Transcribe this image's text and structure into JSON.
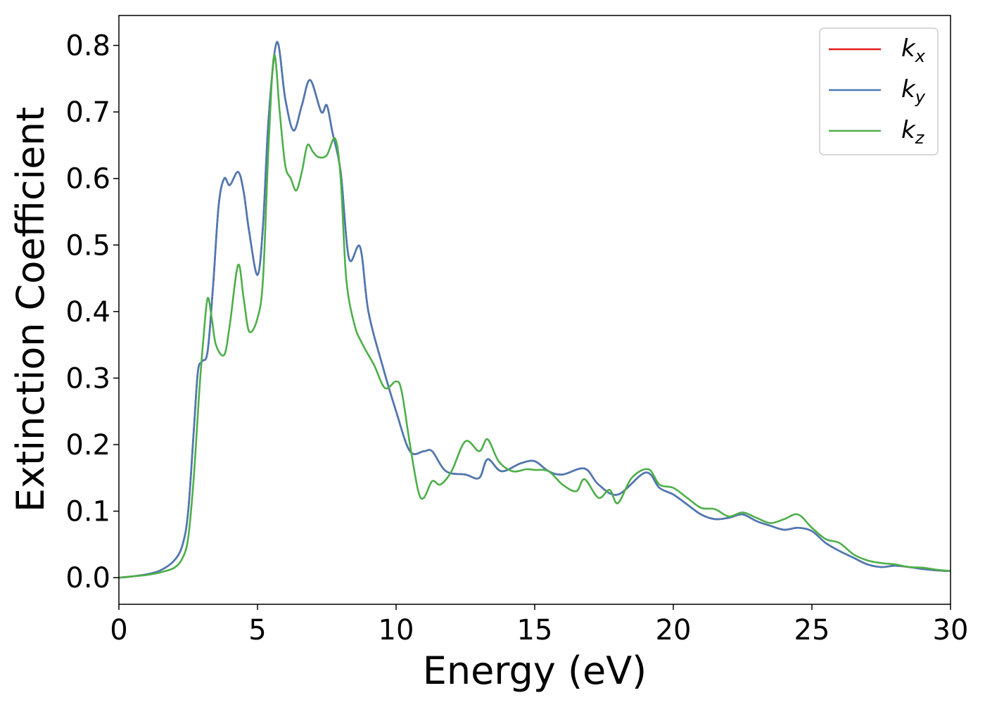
{
  "chart_data": {
    "type": "line",
    "title": "",
    "xlabel": "Energy (eV)",
    "ylabel": "Extinction Coefficient",
    "xlim": [
      0,
      30
    ],
    "ylim": [
      -0.04,
      0.845
    ],
    "x_ticks": [
      0,
      5,
      10,
      15,
      20,
      25,
      30
    ],
    "x_tick_labels": [
      "0",
      "5",
      "10",
      "15",
      "20",
      "25",
      "30"
    ],
    "y_ticks": [
      0.0,
      0.1,
      0.2,
      0.3,
      0.4,
      0.5,
      0.6,
      0.7,
      0.8
    ],
    "y_tick_labels": [
      "0.0",
      "0.1",
      "0.2",
      "0.3",
      "0.4",
      "0.5",
      "0.6",
      "0.7",
      "0.8"
    ],
    "grid": false,
    "legend_position": "top-right",
    "series": [
      {
        "name": "k",
        "subscript": "x",
        "color": "#e41a1c",
        "points": [
          [
            0,
            0.0
          ],
          [
            0.5,
            0.002
          ],
          [
            1.0,
            0.005
          ],
          [
            1.5,
            0.011
          ],
          [
            2.0,
            0.026
          ],
          [
            2.3,
            0.05
          ],
          [
            2.5,
            0.1
          ],
          [
            2.7,
            0.22
          ],
          [
            2.85,
            0.31
          ],
          [
            3.0,
            0.325
          ],
          [
            3.2,
            0.34
          ],
          [
            3.4,
            0.44
          ],
          [
            3.6,
            0.56
          ],
          [
            3.8,
            0.6
          ],
          [
            4.0,
            0.59
          ],
          [
            4.3,
            0.61
          ],
          [
            4.5,
            0.58
          ],
          [
            4.7,
            0.52
          ],
          [
            5.0,
            0.455
          ],
          [
            5.2,
            0.53
          ],
          [
            5.4,
            0.69
          ],
          [
            5.7,
            0.805
          ],
          [
            6.0,
            0.72
          ],
          [
            6.3,
            0.672
          ],
          [
            6.6,
            0.71
          ],
          [
            6.9,
            0.748
          ],
          [
            7.3,
            0.7
          ],
          [
            7.5,
            0.71
          ],
          [
            7.7,
            0.67
          ],
          [
            8.0,
            0.61
          ],
          [
            8.3,
            0.48
          ],
          [
            8.7,
            0.497
          ],
          [
            9.0,
            0.4
          ],
          [
            9.5,
            0.32
          ],
          [
            10.0,
            0.25
          ],
          [
            10.5,
            0.19
          ],
          [
            11.0,
            0.19
          ],
          [
            11.3,
            0.19
          ],
          [
            11.8,
            0.16
          ],
          [
            12.5,
            0.155
          ],
          [
            13.0,
            0.15
          ],
          [
            13.3,
            0.178
          ],
          [
            13.8,
            0.16
          ],
          [
            14.5,
            0.172
          ],
          [
            15.0,
            0.175
          ],
          [
            15.5,
            0.16
          ],
          [
            16.0,
            0.155
          ],
          [
            16.8,
            0.164
          ],
          [
            17.3,
            0.14
          ],
          [
            18.0,
            0.125
          ],
          [
            19.0,
            0.158
          ],
          [
            19.5,
            0.135
          ],
          [
            20.0,
            0.125
          ],
          [
            20.5,
            0.11
          ],
          [
            21.0,
            0.095
          ],
          [
            21.5,
            0.088
          ],
          [
            22.0,
            0.09
          ],
          [
            22.5,
            0.095
          ],
          [
            23.0,
            0.085
          ],
          [
            23.5,
            0.078
          ],
          [
            24.0,
            0.072
          ],
          [
            24.5,
            0.075
          ],
          [
            25.0,
            0.07
          ],
          [
            25.5,
            0.052
          ],
          [
            26.0,
            0.04
          ],
          [
            26.5,
            0.03
          ],
          [
            27.0,
            0.02
          ],
          [
            27.5,
            0.016
          ],
          [
            28.0,
            0.018
          ],
          [
            28.5,
            0.016
          ],
          [
            29.0,
            0.013
          ],
          [
            29.5,
            0.011
          ],
          [
            30.0,
            0.01
          ]
        ]
      },
      {
        "name": "k",
        "subscript": "y",
        "color": "#4a7ab5",
        "points": [
          [
            0,
            0.0
          ],
          [
            0.5,
            0.002
          ],
          [
            1.0,
            0.005
          ],
          [
            1.5,
            0.011
          ],
          [
            2.0,
            0.026
          ],
          [
            2.3,
            0.05
          ],
          [
            2.5,
            0.1
          ],
          [
            2.7,
            0.22
          ],
          [
            2.85,
            0.31
          ],
          [
            3.0,
            0.325
          ],
          [
            3.2,
            0.34
          ],
          [
            3.4,
            0.44
          ],
          [
            3.6,
            0.56
          ],
          [
            3.8,
            0.6
          ],
          [
            4.0,
            0.59
          ],
          [
            4.3,
            0.61
          ],
          [
            4.5,
            0.58
          ],
          [
            4.7,
            0.52
          ],
          [
            5.0,
            0.455
          ],
          [
            5.2,
            0.53
          ],
          [
            5.4,
            0.69
          ],
          [
            5.7,
            0.805
          ],
          [
            6.0,
            0.72
          ],
          [
            6.3,
            0.672
          ],
          [
            6.6,
            0.71
          ],
          [
            6.9,
            0.748
          ],
          [
            7.3,
            0.7
          ],
          [
            7.5,
            0.71
          ],
          [
            7.7,
            0.67
          ],
          [
            8.0,
            0.61
          ],
          [
            8.3,
            0.48
          ],
          [
            8.7,
            0.497
          ],
          [
            9.0,
            0.4
          ],
          [
            9.5,
            0.32
          ],
          [
            10.0,
            0.25
          ],
          [
            10.5,
            0.19
          ],
          [
            11.0,
            0.19
          ],
          [
            11.3,
            0.19
          ],
          [
            11.8,
            0.16
          ],
          [
            12.5,
            0.155
          ],
          [
            13.0,
            0.15
          ],
          [
            13.3,
            0.178
          ],
          [
            13.8,
            0.16
          ],
          [
            14.5,
            0.172
          ],
          [
            15.0,
            0.175
          ],
          [
            15.5,
            0.16
          ],
          [
            16.0,
            0.155
          ],
          [
            16.8,
            0.164
          ],
          [
            17.3,
            0.14
          ],
          [
            18.0,
            0.125
          ],
          [
            19.0,
            0.158
          ],
          [
            19.5,
            0.135
          ],
          [
            20.0,
            0.125
          ],
          [
            20.5,
            0.11
          ],
          [
            21.0,
            0.095
          ],
          [
            21.5,
            0.088
          ],
          [
            22.0,
            0.09
          ],
          [
            22.5,
            0.095
          ],
          [
            23.0,
            0.085
          ],
          [
            23.5,
            0.078
          ],
          [
            24.0,
            0.072
          ],
          [
            24.5,
            0.075
          ],
          [
            25.0,
            0.07
          ],
          [
            25.5,
            0.052
          ],
          [
            26.0,
            0.04
          ],
          [
            26.5,
            0.03
          ],
          [
            27.0,
            0.02
          ],
          [
            27.5,
            0.016
          ],
          [
            28.0,
            0.018
          ],
          [
            28.5,
            0.016
          ],
          [
            29.0,
            0.013
          ],
          [
            29.5,
            0.011
          ],
          [
            30.0,
            0.01
          ]
        ]
      },
      {
        "name": "k",
        "subscript": "z",
        "color": "#4daf4a",
        "points": [
          [
            0,
            0.0
          ],
          [
            0.5,
            0.002
          ],
          [
            1.0,
            0.004
          ],
          [
            1.5,
            0.008
          ],
          [
            2.0,
            0.015
          ],
          [
            2.3,
            0.03
          ],
          [
            2.5,
            0.06
          ],
          [
            2.7,
            0.15
          ],
          [
            2.9,
            0.28
          ],
          [
            3.05,
            0.36
          ],
          [
            3.2,
            0.42
          ],
          [
            3.35,
            0.39
          ],
          [
            3.5,
            0.35
          ],
          [
            3.8,
            0.335
          ],
          [
            4.0,
            0.38
          ],
          [
            4.3,
            0.47
          ],
          [
            4.5,
            0.42
          ],
          [
            4.7,
            0.37
          ],
          [
            5.0,
            0.39
          ],
          [
            5.2,
            0.45
          ],
          [
            5.4,
            0.65
          ],
          [
            5.6,
            0.785
          ],
          [
            5.8,
            0.7
          ],
          [
            6.0,
            0.62
          ],
          [
            6.2,
            0.6
          ],
          [
            6.4,
            0.582
          ],
          [
            6.6,
            0.61
          ],
          [
            6.8,
            0.65
          ],
          [
            7.0,
            0.64
          ],
          [
            7.2,
            0.632
          ],
          [
            7.5,
            0.635
          ],
          [
            7.8,
            0.66
          ],
          [
            8.0,
            0.6
          ],
          [
            8.2,
            0.45
          ],
          [
            8.5,
            0.38
          ],
          [
            8.8,
            0.35
          ],
          [
            9.2,
            0.32
          ],
          [
            9.6,
            0.285
          ],
          [
            10.0,
            0.295
          ],
          [
            10.2,
            0.28
          ],
          [
            10.5,
            0.2
          ],
          [
            10.8,
            0.13
          ],
          [
            11.0,
            0.12
          ],
          [
            11.3,
            0.145
          ],
          [
            11.6,
            0.14
          ],
          [
            12.0,
            0.16
          ],
          [
            12.5,
            0.205
          ],
          [
            13.0,
            0.19
          ],
          [
            13.3,
            0.208
          ],
          [
            13.7,
            0.175
          ],
          [
            14.2,
            0.16
          ],
          [
            14.7,
            0.163
          ],
          [
            15.0,
            0.162
          ],
          [
            15.5,
            0.16
          ],
          [
            16.0,
            0.14
          ],
          [
            16.5,
            0.13
          ],
          [
            16.8,
            0.148
          ],
          [
            17.3,
            0.12
          ],
          [
            17.7,
            0.132
          ],
          [
            18.0,
            0.112
          ],
          [
            18.5,
            0.15
          ],
          [
            19.1,
            0.163
          ],
          [
            19.5,
            0.14
          ],
          [
            20.0,
            0.135
          ],
          [
            20.5,
            0.12
          ],
          [
            21.0,
            0.105
          ],
          [
            21.5,
            0.103
          ],
          [
            22.0,
            0.092
          ],
          [
            22.5,
            0.098
          ],
          [
            23.0,
            0.09
          ],
          [
            23.5,
            0.082
          ],
          [
            24.0,
            0.088
          ],
          [
            24.5,
            0.095
          ],
          [
            25.0,
            0.075
          ],
          [
            25.5,
            0.058
          ],
          [
            26.0,
            0.052
          ],
          [
            26.5,
            0.035
          ],
          [
            27.0,
            0.026
          ],
          [
            27.5,
            0.022
          ],
          [
            28.0,
            0.02
          ],
          [
            28.5,
            0.016
          ],
          [
            29.0,
            0.015
          ],
          [
            29.5,
            0.012
          ],
          [
            30.0,
            0.01
          ]
        ]
      }
    ]
  }
}
